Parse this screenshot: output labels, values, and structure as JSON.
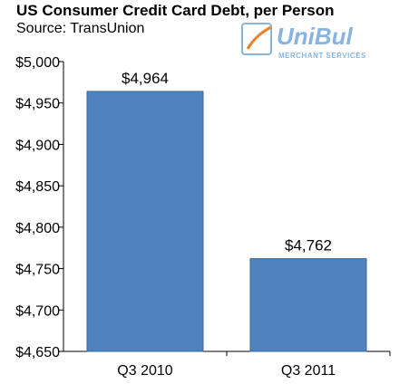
{
  "header": {
    "title": "US Consumer Credit Card Debt, per Person",
    "source": "Source: TransUnion"
  },
  "logo": {
    "name": "UniBul",
    "tagline": "MERCHANT SERVICES",
    "colors": {
      "text": "#8ab4e0",
      "swoosh": "#e8822b"
    }
  },
  "chart_data": {
    "type": "bar",
    "categories": [
      "Q3 2010",
      "Q3 2011"
    ],
    "values": [
      4964,
      4762
    ],
    "data_labels": [
      "$4,964",
      "$4,762"
    ],
    "ylim": [
      4650,
      5000
    ],
    "yticks": [
      4650,
      4700,
      4750,
      4800,
      4850,
      4900,
      4950,
      5000
    ],
    "ytick_labels": [
      "$4,650",
      "$4,700",
      "$4,750",
      "$4,800",
      "$4,850",
      "$4,900",
      "$4,950",
      "$5,000"
    ],
    "grid": false,
    "bar_color": "#4f81bd",
    "bar_edge_color": "#3a6aa3"
  }
}
